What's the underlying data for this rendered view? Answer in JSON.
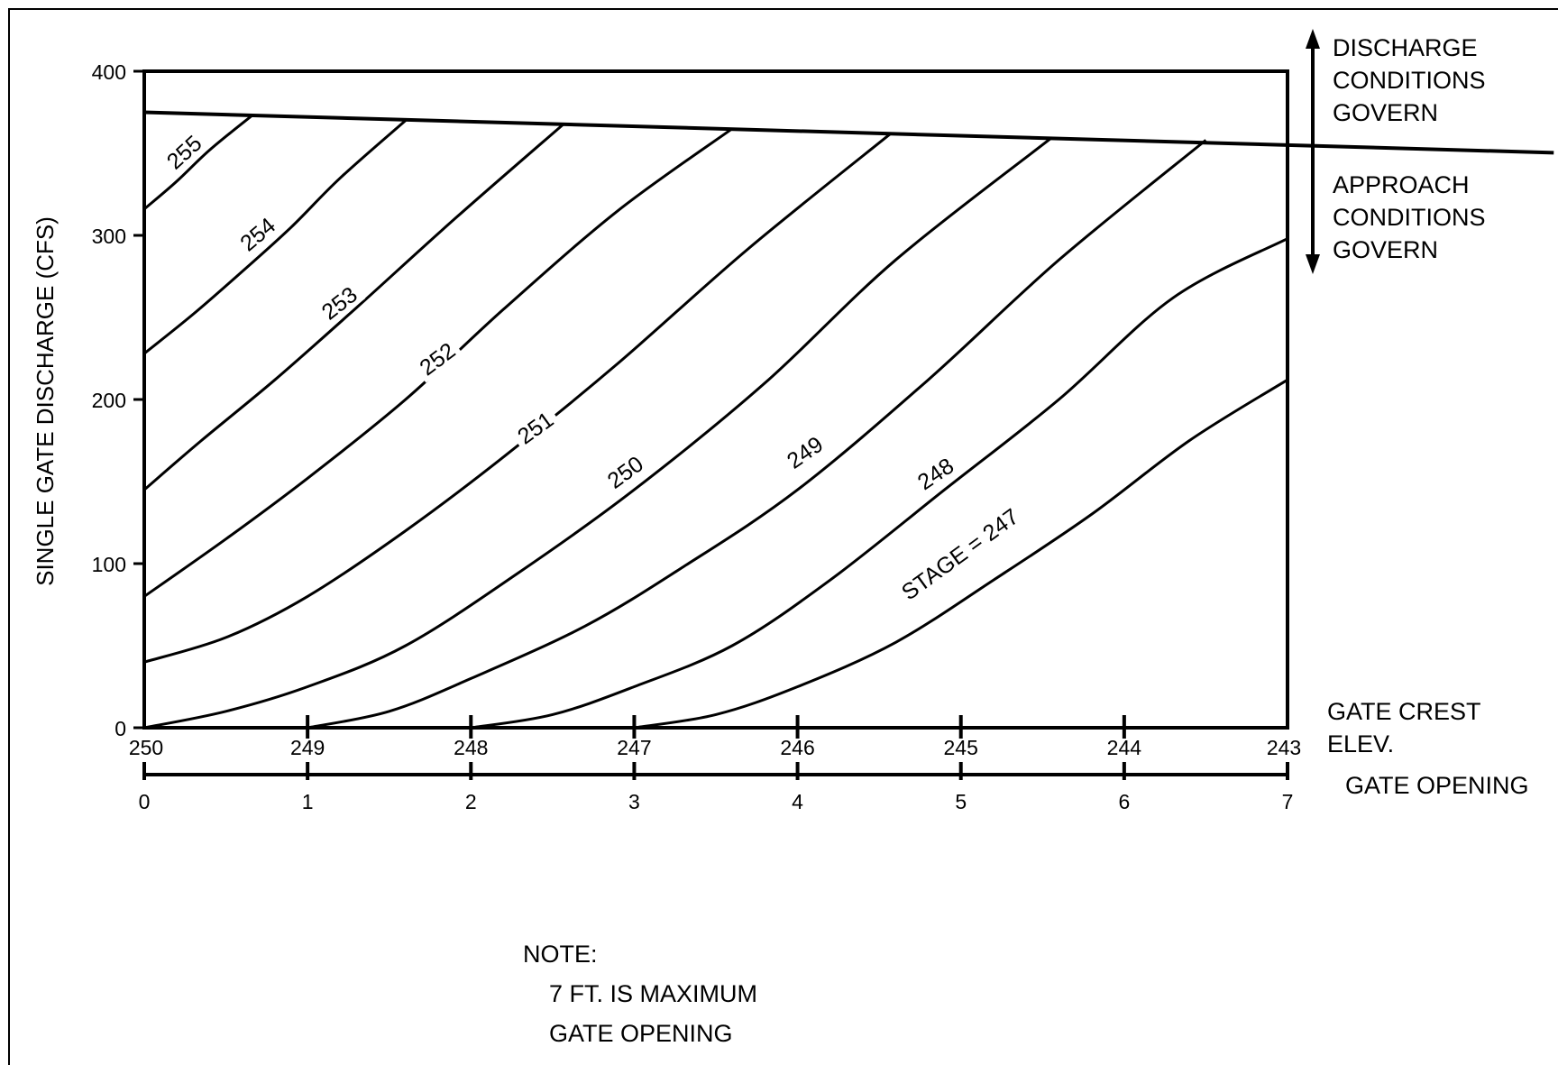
{
  "chart_data": {
    "type": "line",
    "title": "",
    "ylabel": "SINGLE GATE DISCHARGE (CFS)",
    "xlabel": "GATE OPENING",
    "secondary_x_label": "GATE CREST\nELEV.",
    "xlim": [
      0,
      7
    ],
    "ylim": [
      0,
      400
    ],
    "y_ticks": [
      0,
      100,
      200,
      300,
      400
    ],
    "x_ticks": [
      0,
      1,
      2,
      3,
      4,
      5,
      6,
      7
    ],
    "crest_ticks": [
      250,
      249,
      248,
      247,
      246,
      245,
      244,
      243
    ],
    "grid": false,
    "boundary_line": {
      "x": [
        0,
        7
      ],
      "y": [
        375,
        355
      ],
      "label_above": "DISCHARGE\nCONDITIONS\nGOVERN",
      "label_below": "APPROACH\nCONDITIONS\nGOVERN"
    },
    "series": [
      {
        "name": "255",
        "label": "255",
        "label_at": [
          0.25,
          350
        ],
        "label_angle": -42,
        "points": [
          [
            0,
            316
          ],
          [
            0.2,
            333
          ],
          [
            0.4,
            352
          ],
          [
            0.66,
            373
          ]
        ]
      },
      {
        "name": "254",
        "label": "254",
        "label_at": [
          0.7,
          300
        ],
        "label_angle": -40,
        "points": [
          [
            0,
            228
          ],
          [
            0.3,
            252
          ],
          [
            0.6,
            278
          ],
          [
            0.9,
            305
          ],
          [
            1.2,
            335
          ],
          [
            1.6,
            370
          ]
        ]
      },
      {
        "name": "253",
        "label": "253",
        "label_at": [
          1.2,
          258
        ],
        "label_angle": -38,
        "points": [
          [
            0,
            145
          ],
          [
            0.35,
            175
          ],
          [
            0.8,
            212
          ],
          [
            1.3,
            256
          ],
          [
            1.9,
            310
          ],
          [
            2.57,
            368
          ]
        ]
      },
      {
        "name": "252",
        "label": "252",
        "label_at": [
          1.8,
          224
        ],
        "label_angle": -37,
        "points": [
          [
            0,
            80
          ],
          [
            0.5,
            115
          ],
          [
            1.0,
            152
          ],
          [
            1.6,
            200
          ],
          [
            2.2,
            255
          ],
          [
            2.9,
            315
          ],
          [
            3.6,
            365
          ]
        ]
      },
      {
        "name": "251",
        "label": "251",
        "label_at": [
          2.4,
          182
        ],
        "label_angle": -36,
        "points": [
          [
            0,
            40
          ],
          [
            0.5,
            55
          ],
          [
            1.0,
            80
          ],
          [
            1.6,
            120
          ],
          [
            2.2,
            165
          ],
          [
            2.9,
            222
          ],
          [
            3.7,
            292
          ],
          [
            4.57,
            362
          ]
        ]
      },
      {
        "name": "250",
        "label": "250",
        "label_at": [
          2.95,
          155
        ],
        "label_angle": -36,
        "points": [
          [
            0,
            0
          ],
          [
            0.5,
            10
          ],
          [
            1.0,
            25
          ],
          [
            1.6,
            50
          ],
          [
            2.3,
            95
          ],
          [
            3.0,
            145
          ],
          [
            3.8,
            210
          ],
          [
            4.6,
            285
          ],
          [
            5.55,
            359
          ]
        ]
      },
      {
        "name": "249",
        "label": "249",
        "label_at": [
          4.05,
          167
        ],
        "label_angle": -35,
        "points": [
          [
            1.0,
            0
          ],
          [
            1.5,
            10
          ],
          [
            2.0,
            30
          ],
          [
            2.7,
            62
          ],
          [
            3.3,
            98
          ],
          [
            4.0,
            145
          ],
          [
            4.8,
            212
          ],
          [
            5.6,
            285
          ],
          [
            6.5,
            358
          ]
        ]
      },
      {
        "name": "248",
        "label": "248",
        "label_at": [
          4.85,
          154
        ],
        "label_angle": -34,
        "points": [
          [
            2.0,
            0
          ],
          [
            2.5,
            8
          ],
          [
            3.0,
            25
          ],
          [
            3.6,
            50
          ],
          [
            4.2,
            90
          ],
          [
            4.9,
            145
          ],
          [
            5.6,
            200
          ],
          [
            6.3,
            262
          ],
          [
            7.0,
            298
          ]
        ]
      },
      {
        "name": "247",
        "label": "STAGE = 247",
        "label_at": [
          5.0,
          105
        ],
        "label_angle": -36,
        "points": [
          [
            3.0,
            0
          ],
          [
            3.5,
            8
          ],
          [
            4.0,
            25
          ],
          [
            4.6,
            52
          ],
          [
            5.2,
            90
          ],
          [
            5.8,
            130
          ],
          [
            6.4,
            175
          ],
          [
            7.0,
            212
          ]
        ]
      }
    ]
  },
  "note": {
    "heading": "NOTE:",
    "line1": "7 FT. IS MAXIMUM",
    "line2": "GATE OPENING"
  }
}
